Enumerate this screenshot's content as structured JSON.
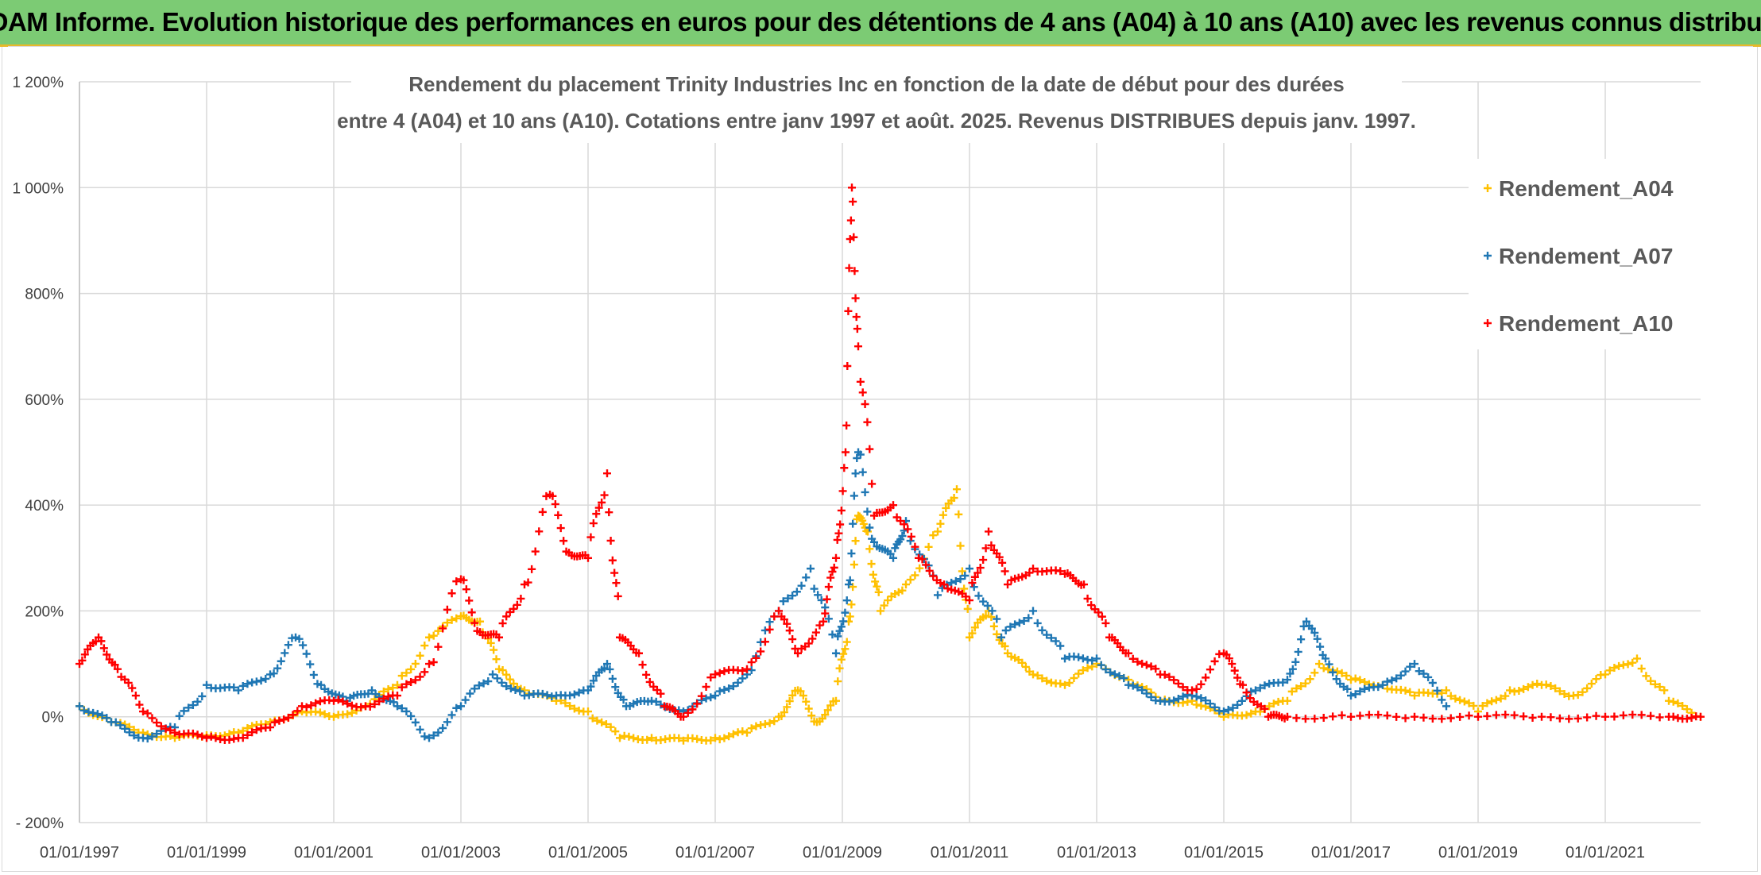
{
  "banner": {
    "title": "ADAM Informe. Evolution historique des performances en euros pour des détentions de 4 ans (A04) à 10 ans (A10) avec les revenus connus distribués"
  },
  "colors": {
    "banner_bg": "#7ccb74",
    "accent": "#e7b92a",
    "A04": "#ffc000",
    "A07": "#1f77b4",
    "A10": "#ff0000"
  },
  "chart_data": {
    "type": "scatter",
    "title_lines": [
      "Rendement du placement Trinity Industries Inc en fonction de la date de début pour des durées",
      "entre 4 (A04) et 10 ans (A10). Cotations entre janv 1997 et août. 2025. Revenus DISTRIBUES depuis janv. 1997."
    ],
    "marker": "+",
    "ylim": [
      -200,
      1200
    ],
    "xlim": [
      1997.0,
      2022.5
    ],
    "y_ticks": [
      -200,
      0,
      200,
      400,
      600,
      800,
      1000,
      1200
    ],
    "y_tick_labels": [
      "- 200%",
      "0%",
      "200%",
      "400%",
      "600%",
      "800%",
      "1 000%",
      "1 200%"
    ],
    "x_ticks": [
      1997,
      1999,
      2001,
      2003,
      2005,
      2007,
      2009,
      2011,
      2013,
      2015,
      2017,
      2019,
      2021
    ],
    "x_tick_labels": [
      "01/01/1997",
      "01/01/1999",
      "01/01/2001",
      "01/01/2003",
      "01/01/2005",
      "01/01/2007",
      "01/01/2009",
      "01/01/2011",
      "01/01/2013",
      "01/01/2015",
      "01/01/2017",
      "01/01/2019",
      "01/01/2021"
    ],
    "grid": true,
    "legend_position": "top-right",
    "series": [
      {
        "name": "Rendement_A04",
        "color": "#ffc000",
        "x": [
          1997.0,
          1997.5,
          1998.0,
          1998.5,
          1999.0,
          1999.5,
          2000.0,
          2000.5,
          2001.0,
          2001.5,
          2002.0,
          2002.5,
          2003.0,
          2003.3,
          2003.6,
          2004.0,
          2004.5,
          2005.0,
          2005.5,
          2006.0,
          2006.5,
          2007.0,
          2007.5,
          2008.0,
          2008.3,
          2008.6,
          2008.9,
          2009.1,
          2009.25,
          2009.4,
          2009.6,
          2010.0,
          2010.5,
          2010.8,
          2011.0,
          2011.3,
          2011.6,
          2012.0,
          2012.5,
          2013.0,
          2013.5,
          2014.0,
          2014.5,
          2015.0,
          2015.5,
          2016.0,
          2016.5,
          2017.0,
          2017.5,
          2018.0,
          2018.5,
          2019.0,
          2019.5,
          2020.0,
          2020.5,
          2021.0,
          2021.5,
          2022.0,
          2022.5
        ],
        "y": [
          20,
          -10,
          -30,
          -40,
          -35,
          -30,
          -10,
          10,
          0,
          20,
          60,
          150,
          190,
          180,
          90,
          50,
          30,
          10,
          -40,
          -40,
          -45,
          -40,
          -30,
          0,
          50,
          -10,
          30,
          180,
          380,
          350,
          200,
          250,
          350,
          430,
          150,
          200,
          120,
          80,
          60,
          100,
          70,
          30,
          30,
          0,
          10,
          30,
          100,
          70,
          60,
          40,
          50,
          10,
          50,
          60,
          40,
          80,
          110,
          30,
          0
        ]
      },
      {
        "name": "Rendement_A07",
        "color": "#1f77b4",
        "x": [
          1997.0,
          1997.5,
          1998.0,
          1998.5,
          1999.0,
          1999.5,
          2000.0,
          2000.4,
          2000.8,
          2001.2,
          2001.6,
          2002.0,
          2002.5,
          2003.0,
          2003.5,
          2004.0,
          2004.5,
          2005.0,
          2005.3,
          2005.6,
          2006.0,
          2006.5,
          2007.0,
          2007.5,
          2008.0,
          2008.5,
          2008.9,
          2009.1,
          2009.25,
          2009.5,
          2009.8,
          2010.0,
          2010.5,
          2011.0,
          2011.5,
          2012.0,
          2012.5,
          2013.0,
          2013.5,
          2014.0,
          2014.5,
          2015.0,
          2015.5,
          2016.0,
          2016.3,
          2016.6,
          2017.0,
          2017.5,
          2018.0,
          2018.5
        ],
        "y": [
          20,
          -10,
          -40,
          -20,
          60,
          50,
          80,
          150,
          60,
          30,
          50,
          20,
          -40,
          20,
          80,
          40,
          40,
          50,
          100,
          20,
          30,
          10,
          40,
          80,
          200,
          280,
          120,
          250,
          500,
          330,
          300,
          370,
          230,
          280,
          150,
          200,
          110,
          110,
          60,
          30,
          40,
          10,
          50,
          70,
          180,
          110,
          40,
          60,
          100,
          20
        ]
      },
      {
        "name": "Rendement_A10",
        "color": "#ff0000",
        "x": [
          1997.0,
          1997.3,
          1997.6,
          1998.0,
          1998.5,
          1999.0,
          1999.5,
          2000.0,
          2000.5,
          2001.0,
          2001.5,
          2002.0,
          2002.5,
          2003.0,
          2003.3,
          2003.6,
          2004.0,
          2004.4,
          2004.7,
          2005.0,
          2005.3,
          2005.5,
          2005.8,
          2006.2,
          2006.5,
          2007.0,
          2007.5,
          2008.0,
          2008.3,
          2008.7,
          2008.9,
          2009.05,
          2009.15,
          2009.25,
          2009.5,
          2009.8,
          2010.2,
          2010.6,
          2011.0,
          2011.3,
          2011.6,
          2012.0,
          2012.5,
          2012.8,
          2013.2,
          2013.5,
          2014.0,
          2014.5,
          2015.0,
          2015.3,
          2015.7,
          2016.0,
          2017.0,
          2018.0,
          2019.0,
          2020.0,
          2021.0,
          2022.0,
          2022.5
        ],
        "y": [
          100,
          150,
          90,
          10,
          -30,
          -40,
          -40,
          -20,
          20,
          30,
          20,
          40,
          100,
          260,
          160,
          150,
          250,
          420,
          310,
          300,
          460,
          150,
          120,
          20,
          0,
          80,
          90,
          200,
          120,
          180,
          300,
          500,
          1000,
          700,
          380,
          400,
          300,
          250,
          220,
          350,
          250,
          280,
          270,
          250,
          150,
          120,
          80,
          50,
          120,
          60,
          0,
          0,
          0,
          0,
          0,
          0,
          0,
          0,
          0
        ]
      }
    ]
  }
}
